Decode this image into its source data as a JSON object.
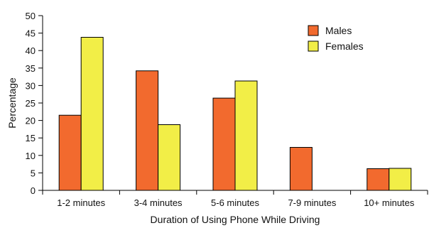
{
  "chart_data": {
    "type": "bar",
    "categories": [
      "1-2 minutes",
      "3-4 minutes",
      "5-6 minutes",
      "7-9 minutes",
      "10+ minutes"
    ],
    "series": [
      {
        "name": "Males",
        "values": [
          21.5,
          34.2,
          26.4,
          12.3,
          6.2
        ],
        "color": "#f26a2e"
      },
      {
        "name": "Females",
        "values": [
          43.8,
          18.8,
          31.3,
          0,
          6.3
        ],
        "color": "#f2ee47"
      }
    ],
    "title": "",
    "xlabel": "Duration of Using Phone While Driving",
    "ylabel": "Percentage",
    "ylim": [
      0,
      50
    ],
    "yticks": [
      "0",
      "5",
      "10",
      "15",
      "20",
      "25",
      "30",
      "35",
      "40",
      "45",
      "50"
    ],
    "grid": false,
    "legend_position": "top-right"
  }
}
